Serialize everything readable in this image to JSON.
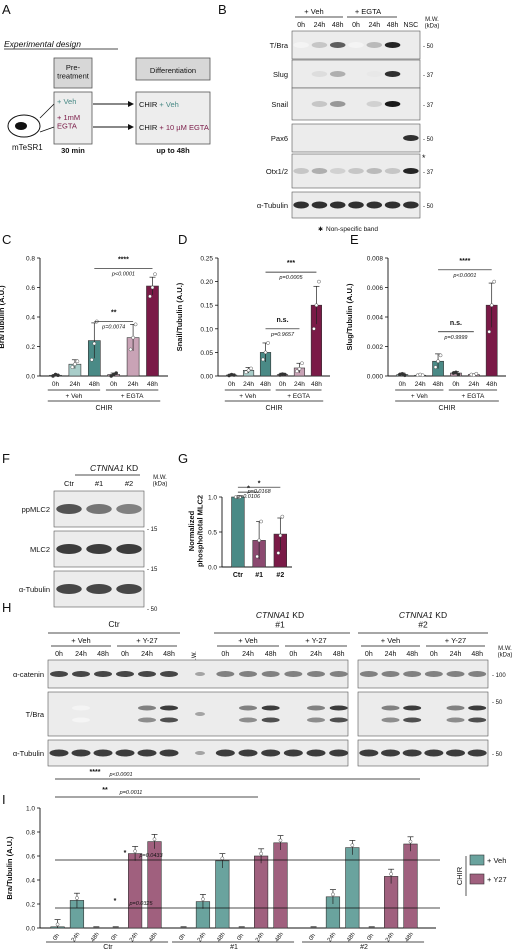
{
  "panel_letters": [
    "A",
    "B",
    "C",
    "D",
    "E",
    "F",
    "G",
    "H",
    "I"
  ],
  "panel_a": {
    "heading": "Experimental design",
    "cell_label": "mTeSR1",
    "pretreatment_title": "Pre-\ntreatment",
    "veh": "+ Veh",
    "egta_pre": "+ 1mM\nEGTA",
    "time_pre": "30 min",
    "diff_title": "Differentiation",
    "chir": "CHIR",
    "chir_veh": "+ Veh",
    "chir_egta": "+ 10 µM EGTA",
    "time_diff": "up to 48h",
    "colors": {
      "veh": "#4a8a86",
      "egta": "#7a1a47"
    }
  },
  "panel_b": {
    "group_veh": "+ Veh",
    "group_egta": "+ EGTA",
    "lanes": [
      "0h",
      "24h",
      "48h",
      "0h",
      "24h",
      "48h",
      "NSC"
    ],
    "mw_header": "M.W.\n(kDa)",
    "blots": [
      {
        "label": "T/Bra",
        "mw": [
          "50"
        ]
      },
      {
        "label": "Slug",
        "mw": [
          "37"
        ]
      },
      {
        "label": "Snail",
        "mw": [
          "37"
        ]
      },
      {
        "label": "Pax6",
        "mw": [
          "50"
        ]
      },
      {
        "label": "Otx1/2",
        "mw": [
          "37"
        ]
      },
      {
        "label": "α-Tubulin",
        "mw": [
          "50"
        ]
      }
    ],
    "footnote": "Non-specific band"
  },
  "bar_charts": [
    {
      "id": "C",
      "ylabel": "Bra/Tubulin (A.U.)",
      "ylim": [
        0,
        0.8
      ],
      "ticks": [
        0.0,
        0.2,
        0.4,
        0.6,
        0.8
      ],
      "tick_labels": [
        "0.0",
        "0.2",
        "0.4",
        "0.6",
        "0.8"
      ],
      "categories": [
        "0h",
        "24h",
        "48h",
        "0h",
        "24h",
        "48h"
      ],
      "values": [
        0.005,
        0.08,
        0.24,
        0.01,
        0.26,
        0.61
      ],
      "errors": [
        0.005,
        0.03,
        0.12,
        0.01,
        0.09,
        0.06
      ],
      "points": [
        [
          0.0,
          0.01,
          0.005
        ],
        [
          0.06,
          0.08,
          0.1
        ],
        [
          0.11,
          0.22,
          0.37
        ],
        [
          0.0,
          0.01,
          0.02
        ],
        [
          0.18,
          0.26,
          0.35
        ],
        [
          0.54,
          0.6,
          0.69
        ]
      ],
      "groups": [
        "+ Veh",
        "+ EGTA"
      ],
      "xlabel": "CHIR",
      "annotations": [
        {
          "stars": "****",
          "p": "p<0.0001",
          "from": 2,
          "to": 5,
          "y": 0.73
        },
        {
          "stars": "**",
          "p": "p=0.0074",
          "from": 2,
          "to": 4,
          "y": 0.37
        }
      ]
    },
    {
      "id": "D",
      "ylabel": "Snail/Tubulin (A.U.)",
      "ylim": [
        0,
        0.25
      ],
      "ticks": [
        0.0,
        0.05,
        0.1,
        0.15,
        0.2,
        0.25
      ],
      "tick_labels": [
        "0.00",
        "0.05",
        "0.10",
        "0.15",
        "0.20",
        "0.25"
      ],
      "categories": [
        "0h",
        "24h",
        "48h",
        "0h",
        "24h",
        "48h"
      ],
      "values": [
        0.002,
        0.012,
        0.05,
        0.003,
        0.017,
        0.15
      ],
      "errors": [
        0.002,
        0.006,
        0.02,
        0.003,
        0.01,
        0.04
      ],
      "points": [
        [
          0.001,
          0.003,
          0.002
        ],
        [
          0.008,
          0.012,
          0.016
        ],
        [
          0.035,
          0.05,
          0.07
        ],
        [
          0.002,
          0.004,
          0.003
        ],
        [
          0.01,
          0.015,
          0.027
        ],
        [
          0.1,
          0.15,
          0.2
        ]
      ],
      "groups": [
        "+ Veh",
        "+ EGTA"
      ],
      "xlabel": "CHIR",
      "annotations": [
        {
          "stars": "***",
          "p": "p=0.0005",
          "from": 2,
          "to": 5,
          "y": 0.22
        },
        {
          "stars": "n.s.",
          "p": "p=0.9657",
          "from": 2,
          "to": 4,
          "y": 0.1
        }
      ]
    },
    {
      "id": "E",
      "ylabel": "Slug/Tubulin (A.U.)",
      "ylim": [
        0,
        0.008
      ],
      "ticks": [
        0,
        0.002,
        0.004,
        0.006,
        0.008
      ],
      "tick_labels": [
        "0.000",
        "0.002",
        "0.004",
        "0.006",
        "0.008"
      ],
      "categories": [
        "0h",
        "24h",
        "48h",
        "0h",
        "24h",
        "48h"
      ],
      "values": [
        0.0001,
        5e-05,
        0.001,
        0.0002,
        0.0001,
        0.0048
      ],
      "errors": [
        0.0001,
        5e-05,
        0.0005,
        0.0001,
        5e-05,
        0.0015
      ],
      "points": [
        [
          0.0001,
          0.00015,
          5e-05
        ],
        [
          5e-05,
          0.0001,
          5e-05
        ],
        [
          0.0006,
          0.001,
          0.0014
        ],
        [
          0.0002,
          0.00025,
          0.0001
        ],
        [
          0.0001,
          5e-05,
          0.00015
        ],
        [
          0.003,
          0.0048,
          0.0064
        ]
      ],
      "groups": [
        "+ Veh",
        "+ EGTA"
      ],
      "xlabel": "CHIR",
      "annotations": [
        {
          "stars": "****",
          "p": "p<0.0001",
          "from": 2,
          "to": 5,
          "y": 0.0072
        },
        {
          "stars": "n.s.",
          "p": "p=0.9999",
          "from": 2,
          "to": 4,
          "y": 0.003
        }
      ]
    }
  ],
  "chart_data": [
    {
      "type": "bar",
      "panel": "C",
      "ylabel": "Bra/Tubulin (A.U.)",
      "categories": [
        "0h",
        "24h",
        "48h",
        "0h",
        "24h",
        "48h"
      ],
      "values": [
        0.005,
        0.08,
        0.24,
        0.01,
        0.26,
        0.61
      ],
      "ylim": [
        0,
        0.8
      ]
    },
    {
      "type": "bar",
      "panel": "D",
      "ylabel": "Snail/Tubulin (A.U.)",
      "categories": [
        "0h",
        "24h",
        "48h",
        "0h",
        "24h",
        "48h"
      ],
      "values": [
        0.002,
        0.012,
        0.05,
        0.003,
        0.017,
        0.15
      ],
      "ylim": [
        0,
        0.25
      ]
    },
    {
      "type": "bar",
      "panel": "E",
      "ylabel": "Slug/Tubulin (A.U.)",
      "categories": [
        "0h",
        "24h",
        "48h",
        "0h",
        "24h",
        "48h"
      ],
      "values": [
        0.0001,
        5e-05,
        0.001,
        0.0002,
        0.0001,
        0.0048
      ],
      "ylim": [
        0,
        0.008
      ]
    },
    {
      "type": "bar",
      "panel": "G",
      "ylabel": "Normalized phospho/total MLC2",
      "categories": [
        "Ctr",
        "#1",
        "#2"
      ],
      "values": [
        1.0,
        0.38,
        0.47
      ],
      "ylim": [
        0,
        1.0
      ]
    },
    {
      "type": "bar",
      "panel": "I",
      "ylabel": "Bra/Tubulin (A.U.)",
      "categories": [
        "0h",
        "24h",
        "48h",
        "0h",
        "24h",
        "48h"
      ],
      "ylim": [
        0,
        1.0
      ]
    }
  ],
  "panel_f": {
    "title_gene": "CTNNA1",
    "title_rest": " KD",
    "lanes": [
      "Ctr",
      "#1",
      "#2"
    ],
    "mw_header": "M.W.\n(kDa)",
    "blots": [
      {
        "label": "ppMLC2",
        "mw": "15"
      },
      {
        "label": "MLC2",
        "mw": "15"
      },
      {
        "label": "α-Tubulin",
        "mw": "50"
      }
    ]
  },
  "panel_g": {
    "ylabel": "Normalized\nphospho/total MLC2",
    "ylim": [
      0,
      1.0
    ],
    "ticks": [
      0,
      0.5,
      1.0
    ],
    "tick_labels": [
      "0.0",
      "0.5",
      "1.0"
    ],
    "categories": [
      "Ctr",
      "#1",
      "#2"
    ],
    "values": [
      1.0,
      0.38,
      0.47
    ],
    "errors": [
      0.005,
      0.27,
      0.23
    ],
    "points": [
      [
        1.0,
        1.0,
        1.0
      ],
      [
        0.15,
        0.38,
        0.65
      ],
      [
        0.2,
        0.45,
        0.72
      ]
    ],
    "colors": [
      "#4a8a86",
      "#8c4a70",
      "#7a1a47"
    ],
    "annotations": [
      {
        "stars": "*",
        "p": "p=0.0168",
        "from": 0,
        "to": 2,
        "y": 1.14
      },
      {
        "stars": "*",
        "p": "p=0.0106",
        "from": 0,
        "to": 1,
        "y": 1.07
      }
    ]
  },
  "panel_h": {
    "groups": [
      {
        "title": "Ctr",
        "italic": "",
        "title_rest": ""
      },
      {
        "title": "",
        "italic": "CTNNA1",
        "title_rest": " KD\n#1"
      },
      {
        "title": "",
        "italic": "CTNNA1",
        "title_rest": " KD\n#2"
      }
    ],
    "treatments": [
      "+ Veh",
      "+ Y-27"
    ],
    "times": [
      "0h",
      "24h",
      "48h"
    ],
    "mw_lane": "M.W.",
    "mw_header": "M.W.\n(kDa)",
    "blots": [
      {
        "label": "α-catenin",
        "mw": "100"
      },
      {
        "label": "T/Bra",
        "mw": "50"
      },
      {
        "label": "α-Tubulin",
        "mw": "50"
      }
    ]
  },
  "panel_i": {
    "ylabel": "Bra/Tubulin (A.U.)",
    "ylim": [
      0,
      1.0
    ],
    "ticks": [
      0,
      0.2,
      0.4,
      0.6,
      0.8,
      1.0
    ],
    "tick_labels": [
      "0.0",
      "0.2",
      "0.4",
      "0.6",
      "0.8",
      "1.0"
    ],
    "times": [
      "0h",
      "24h",
      "48h"
    ],
    "groups": [
      {
        "label": "Ctr",
        "veh": [
          0.01,
          0.23,
          0.0
        ],
        "y27": [
          0.0,
          0.62,
          0.72
        ]
      },
      {
        "label": "#1",
        "veh": [
          0.0,
          0.22,
          0.56
        ],
        "y27": [
          0.0,
          0.6,
          0.71
        ]
      },
      {
        "label": "#2",
        "veh": [
          0.0,
          0.26,
          0.67
        ],
        "y27": [
          0.0,
          0.43,
          0.7
        ]
      }
    ],
    "kd_label_italic": "CTNNA1",
    "kd_label_rest": " KD",
    "legend": {
      "title": "CHIR",
      "veh": "+ Veh",
      "y27": "+ Y27"
    },
    "annotations": [
      {
        "stars": "****",
        "p": "p<0.0001"
      },
      {
        "stars": "**",
        "p": "p=0.0011"
      },
      {
        "stars": "*",
        "p": "p=0.0325"
      },
      {
        "stars": "*",
        "p": "p=0.0433"
      }
    ],
    "colors": {
      "veh": "#6aa39e",
      "y27": "#a0607e"
    }
  }
}
